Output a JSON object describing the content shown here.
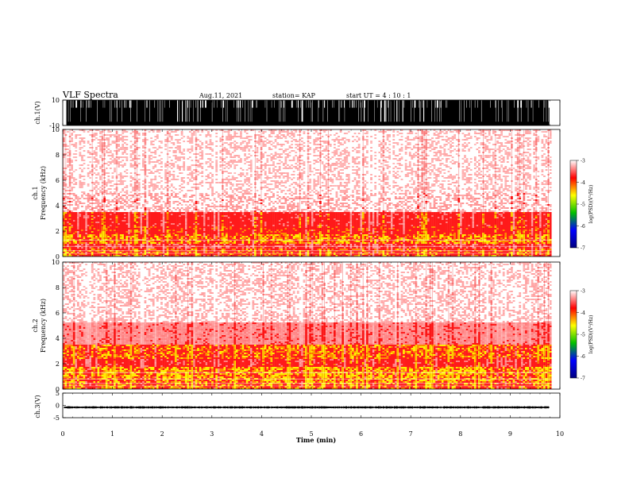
{
  "header": {
    "title": "VLF Spectra",
    "date": "Aug.11, 2021",
    "station": "station= KAP",
    "start": "start  UT =   4 : 10 : 1"
  },
  "chart_data": [
    {
      "type": "line",
      "name": "ch1-waveform",
      "ylabel": "ch.1(V)",
      "ylim": [
        -10,
        10
      ],
      "yticks": [
        "10",
        "-10"
      ],
      "xlim": [
        0,
        10
      ],
      "baseline_range": [
        -9,
        -7
      ],
      "burst_range": [
        -10,
        10
      ]
    },
    {
      "type": "heatmap",
      "name": "ch1-spectrogram",
      "ylabel": "ch.1\nFrequency (kHz)",
      "ylim": [
        0,
        10
      ],
      "yticks": [
        0,
        2,
        4,
        6,
        8,
        10
      ],
      "xlim": [
        0,
        9.83
      ],
      "bands": [
        {
          "f0": 0.0,
          "f1": 0.6,
          "level": 0.75
        },
        {
          "f0": 0.6,
          "f1": 1.0,
          "level": 0.45
        },
        {
          "f0": 1.0,
          "f1": 1.8,
          "level": 0.85
        },
        {
          "f0": 1.8,
          "f1": 2.4,
          "level": 0.65
        },
        {
          "f0": 2.4,
          "f1": 3.5,
          "level": 0.55
        },
        {
          "f0": 3.5,
          "f1": 5.0,
          "level": 0.22
        },
        {
          "f0": 5.0,
          "f1": 10.0,
          "level": 0.13
        }
      ]
    },
    {
      "type": "heatmap",
      "name": "ch2-spectrogram",
      "ylabel": "ch.2\nFrequency (kHz)",
      "ylim": [
        0,
        10
      ],
      "yticks": [
        0,
        2,
        4,
        6,
        8,
        10
      ],
      "xlim": [
        0,
        9.83
      ],
      "bands": [
        {
          "f0": 0.0,
          "f1": 0.5,
          "level": 0.8
        },
        {
          "f0": 0.5,
          "f1": 1.0,
          "level": 0.9
        },
        {
          "f0": 1.0,
          "f1": 1.8,
          "level": 0.95
        },
        {
          "f0": 1.8,
          "f1": 2.4,
          "level": 0.55
        },
        {
          "f0": 2.4,
          "f1": 3.5,
          "level": 0.8
        },
        {
          "f0": 3.5,
          "f1": 5.2,
          "level": 0.3
        },
        {
          "f0": 5.2,
          "f1": 10.0,
          "level": 0.15
        }
      ]
    },
    {
      "type": "line",
      "name": "ch3-waveform",
      "ylabel": "ch.3(V)",
      "ylim": [
        -5,
        5
      ],
      "yticks": [
        "5",
        "0",
        "-5"
      ],
      "xlim": [
        0,
        10
      ],
      "center": -0.8,
      "amplitude": 0.4
    }
  ],
  "xaxis": {
    "label": "Time (min)",
    "ticks": [
      "0",
      "1",
      "2",
      "3",
      "4",
      "5",
      "6",
      "7",
      "8",
      "9",
      "10"
    ],
    "range": [
      0,
      10
    ]
  },
  "colorbar": {
    "label": "log(PSD)(V²/Hz)",
    "ticks": [
      "-3",
      "-4",
      "-5",
      "-6",
      "-7"
    ],
    "range": [
      -7,
      -3
    ],
    "colors": [
      "#000080",
      "#0000ff",
      "#00c000",
      "#ffff00",
      "#ff0000",
      "#ffffff"
    ]
  }
}
